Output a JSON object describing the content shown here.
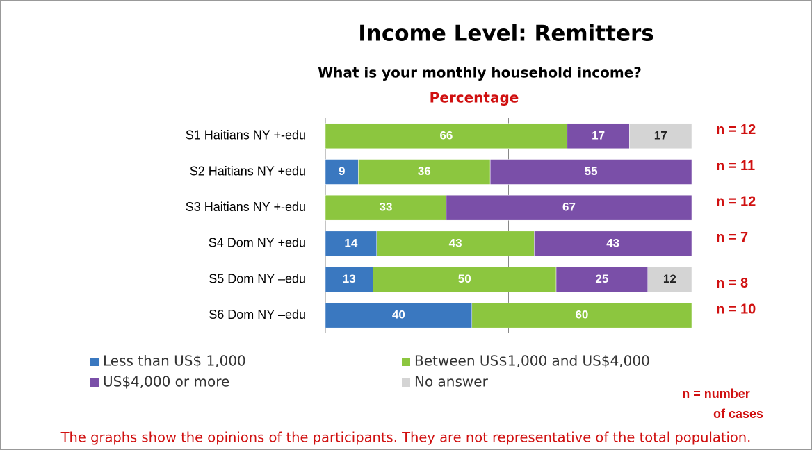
{
  "chart_data": {
    "type": "stacked-bar-horizontal",
    "title": "Income Level: Remitters",
    "subtitle": "What is your monthly household income?",
    "xlabel": "Percentage",
    "categories": [
      "S1 Haitians NY +-edu",
      "S2 Haitians NY +edu",
      "S3 Haitians NY +-edu",
      "S4 Dom NY +edu",
      "S5 Dom NY –edu",
      "S6 Dom NY –edu"
    ],
    "xlim": [
      0,
      100
    ],
    "series": [
      {
        "name": "Less than US$ 1,000",
        "color": "#3a78c0",
        "values": [
          null,
          9,
          null,
          14,
          13,
          40
        ]
      },
      {
        "name": "Between US$1,000 and US$4,000",
        "color": "#8cc63f",
        "values": [
          66,
          36,
          33,
          43,
          50,
          60
        ]
      },
      {
        "name": "US$4,000 or more",
        "color": "#7a4fa8",
        "values": [
          17,
          55,
          67,
          43,
          25,
          null
        ]
      },
      {
        "name": "No answer",
        "color": "#d4d4d4",
        "values": [
          17,
          null,
          null,
          null,
          12,
          null
        ]
      }
    ],
    "annotations": [
      "n = 12",
      "n = 11",
      "n = 12",
      "n = 7",
      "n = 8",
      "n = 10"
    ],
    "footnote": "n = number of cases",
    "note": "The graphs show the opinions of the participants. They are not representative of the total population."
  }
}
